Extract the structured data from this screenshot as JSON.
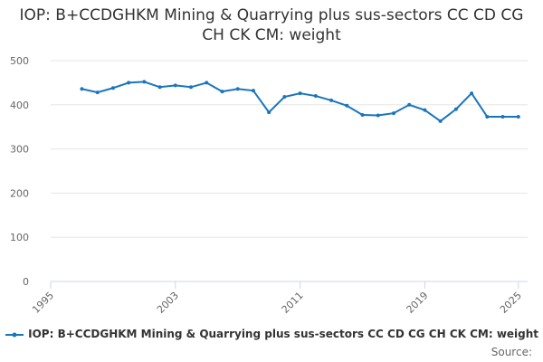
{
  "chart_data": {
    "type": "line",
    "title": "IOP: B+CCDGHKM Mining & Quarrying plus sus-sectors CC CD CG CH CK CM: weight",
    "x": [
      1997,
      1998,
      1999,
      2000,
      2001,
      2002,
      2003,
      2004,
      2005,
      2006,
      2007,
      2008,
      2009,
      2010,
      2011,
      2012,
      2013,
      2014,
      2015,
      2016,
      2017,
      2018,
      2019,
      2020,
      2021,
      2022,
      2023,
      2024,
      2025
    ],
    "series": [
      {
        "name": "IOP: B+CCDGHKM Mining & Quarrying plus sus-sectors CC CD CG CH CK CM: weight",
        "color": "#1a75bc",
        "values": [
          436,
          428,
          438,
          450,
          452,
          440,
          444,
          440,
          450,
          430,
          436,
          432,
          383,
          418,
          426,
          420,
          410,
          398,
          377,
          376,
          381,
          400,
          388,
          363,
          390,
          426,
          373,
          373,
          373
        ]
      }
    ],
    "xlim": [
      1995,
      2026
    ],
    "xticks": [
      1995,
      2003,
      2011,
      2019,
      2025
    ],
    "ylim": [
      0,
      500
    ],
    "yticks": [
      0,
      100,
      200,
      300,
      400,
      500
    ],
    "grid": true,
    "legend": "bottom",
    "source": "Source:"
  }
}
